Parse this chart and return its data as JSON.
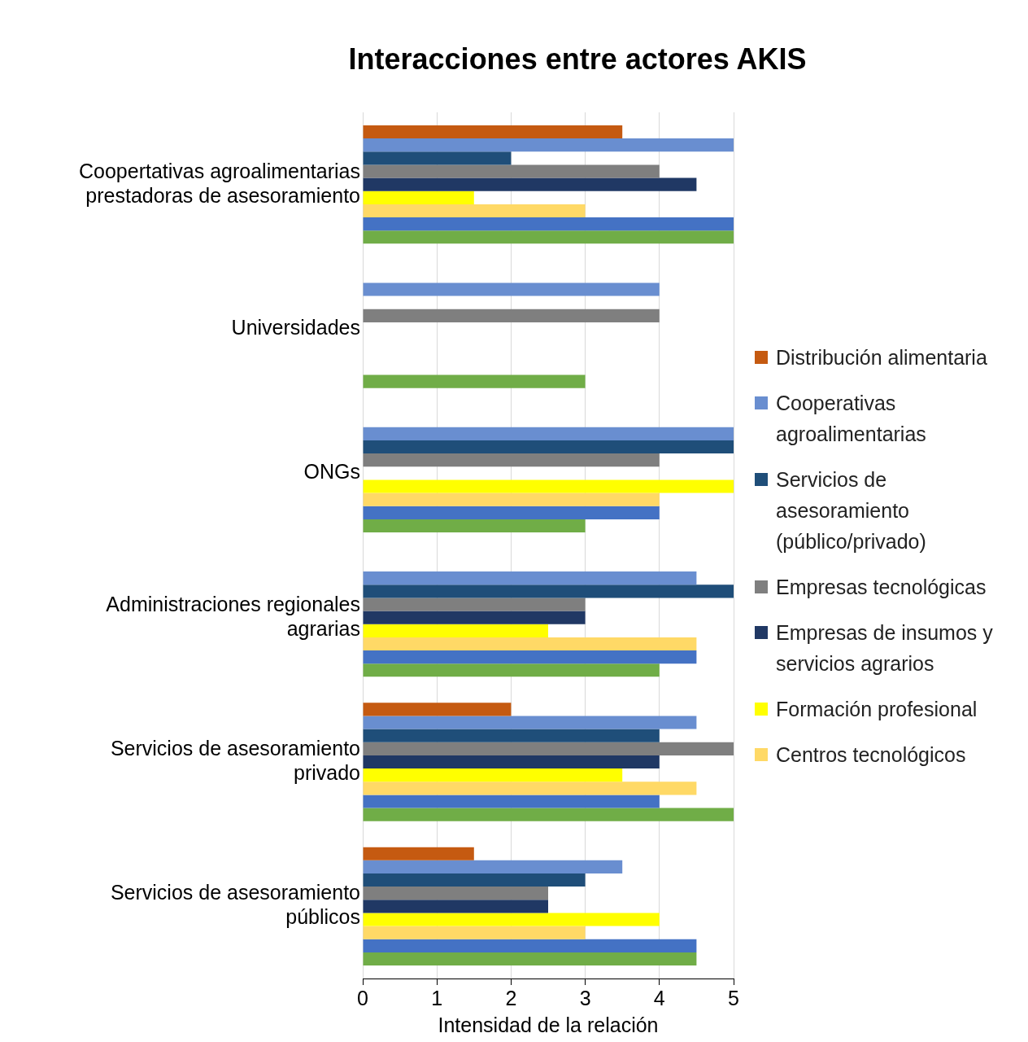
{
  "chart_data": {
    "type": "bar",
    "orientation": "horizontal",
    "title": "Interacciones entre actores AKIS",
    "xlabel": "Intensidad de la relación",
    "categories": [
      "Coopertativas agroalimentarias prestadoras de asesoramiento",
      "Universidades",
      "ONGs",
      "Administraciones regionales agrarias",
      "Servicios de asesoramiento privado",
      "Servicios de asesoramiento públicos"
    ],
    "series": [
      {
        "name": "Distribución alimentaria",
        "color": "#c55a11",
        "values": [
          3.5,
          null,
          null,
          null,
          2,
          1.5
        ]
      },
      {
        "name": "Cooperativas agroalimentarias",
        "color": "#698ed0",
        "values": [
          5,
          4,
          5,
          4.5,
          4.5,
          3.5
        ]
      },
      {
        "name": "Servicios de asesoramiento (público/privado)",
        "color": "#1f4e79",
        "values": [
          2,
          null,
          5,
          5,
          4,
          3
        ]
      },
      {
        "name": "Empresas tecnológicas",
        "color": "#7f7f7f",
        "values": [
          4,
          4,
          4,
          3,
          5,
          2.5
        ]
      },
      {
        "name": "Empresas de insumos y servicios agrarios",
        "color": "#203864",
        "values": [
          4.5,
          null,
          null,
          3,
          4,
          2.5
        ]
      },
      {
        "name": "Formación profesional",
        "color": "#ffff00",
        "values": [
          1.5,
          null,
          5,
          2.5,
          3.5,
          4
        ]
      },
      {
        "name": "Centros tecnológicos",
        "color": "#ffd966",
        "values": [
          3,
          null,
          4,
          4.5,
          4.5,
          3
        ]
      },
      {
        "color": "#4472c4",
        "values": [
          5,
          null,
          4,
          4.5,
          4,
          4.5
        ]
      },
      {
        "color": "#70ad47",
        "values": [
          5,
          3,
          3,
          4,
          5,
          4.5
        ]
      }
    ],
    "xlim": [
      0,
      5
    ],
    "xticks": [
      0,
      1,
      2,
      3,
      4,
      5
    ],
    "grid": "x",
    "legend": "right"
  }
}
